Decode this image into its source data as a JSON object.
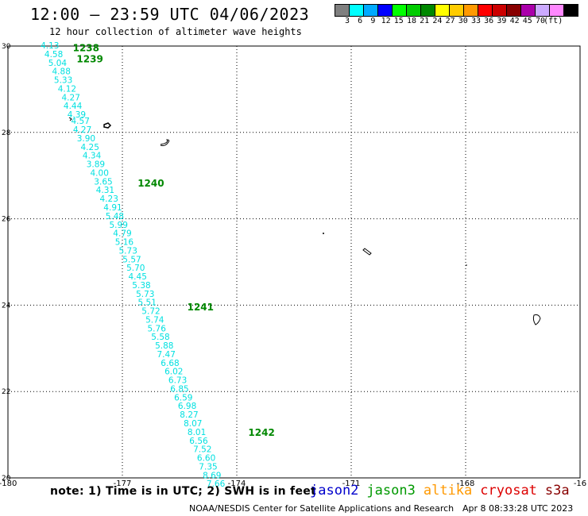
{
  "header": {
    "title": "12:00 – 23:59 UTC 04/06/2023",
    "subtitle": "12 hour collection of altimeter wave heights"
  },
  "color_scale": {
    "colors": [
      "#7f7f7f",
      "#00ffff",
      "#00aaff",
      "#0000ff",
      "#00ff00",
      "#00cc00",
      "#008800",
      "#ffff00",
      "#ffcc00",
      "#ff9900",
      "#ff0000",
      "#cc0000",
      "#880000",
      "#aa00aa",
      "#ccaaff",
      "#ff88ff",
      "#000000"
    ],
    "labels": [
      "3",
      "6",
      "9",
      "12",
      "15",
      "18",
      "21",
      "24",
      "27",
      "30",
      "33",
      "36",
      "39",
      "42",
      "45",
      "70",
      "(ft)"
    ]
  },
  "map": {
    "lon_ticks": [
      "-180",
      "-177",
      "-174",
      "-171",
      "-168",
      "-16"
    ],
    "lat_ticks": [
      "30",
      "28",
      "26",
      "24",
      "22",
      "20"
    ],
    "lon_range": [
      -180,
      -165
    ],
    "lat_range": [
      20,
      30
    ],
    "track_color": "#00e0e0",
    "label_color": "#008800",
    "measurements": [
      {
        "lat": 30.0,
        "lon": -178.9,
        "v": "4.13"
      },
      {
        "lat": 29.8,
        "lon": -178.8,
        "v": "4.58"
      },
      {
        "lat": 29.6,
        "lon": -178.7,
        "v": "5.04"
      },
      {
        "lat": 29.4,
        "lon": -178.6,
        "v": "4.88"
      },
      {
        "lat": 29.2,
        "lon": -178.55,
        "v": "5.33"
      },
      {
        "lat": 29.0,
        "lon": -178.45,
        "v": "4.12"
      },
      {
        "lat": 28.8,
        "lon": -178.35,
        "v": "4.27"
      },
      {
        "lat": 28.6,
        "lon": -178.3,
        "v": "4.44"
      },
      {
        "lat": 28.4,
        "lon": -178.2,
        "v": "4.39"
      },
      {
        "lat": 28.25,
        "lon": -178.1,
        "v": "4.57"
      },
      {
        "lat": 28.05,
        "lon": -178.05,
        "v": "4.27"
      },
      {
        "lat": 27.85,
        "lon": -177.95,
        "v": "3.90"
      },
      {
        "lat": 27.65,
        "lon": -177.85,
        "v": "4.25"
      },
      {
        "lat": 27.45,
        "lon": -177.8,
        "v": "4.34"
      },
      {
        "lat": 27.25,
        "lon": -177.7,
        "v": "3.89"
      },
      {
        "lat": 27.05,
        "lon": -177.6,
        "v": "4.00"
      },
      {
        "lat": 26.85,
        "lon": -177.5,
        "v": "3.65"
      },
      {
        "lat": 26.65,
        "lon": -177.45,
        "v": "4.31"
      },
      {
        "lat": 26.45,
        "lon": -177.35,
        "v": "4.23"
      },
      {
        "lat": 26.25,
        "lon": -177.25,
        "v": "4.91"
      },
      {
        "lat": 26.05,
        "lon": -177.2,
        "v": "5.48"
      },
      {
        "lat": 25.85,
        "lon": -177.1,
        "v": "5.99"
      },
      {
        "lat": 25.65,
        "lon": -177.0,
        "v": "4.79"
      },
      {
        "lat": 25.45,
        "lon": -176.95,
        "v": "5.16"
      },
      {
        "lat": 25.25,
        "lon": -176.85,
        "v": "5.73"
      },
      {
        "lat": 25.05,
        "lon": -176.75,
        "v": "5.57"
      },
      {
        "lat": 24.85,
        "lon": -176.65,
        "v": "5.70"
      },
      {
        "lat": 24.65,
        "lon": -176.6,
        "v": "4.45"
      },
      {
        "lat": 24.45,
        "lon": -176.5,
        "v": "5.38"
      },
      {
        "lat": 24.25,
        "lon": -176.4,
        "v": "5.73"
      },
      {
        "lat": 24.05,
        "lon": -176.35,
        "v": "5.51"
      },
      {
        "lat": 23.85,
        "lon": -176.25,
        "v": "5.72"
      },
      {
        "lat": 23.65,
        "lon": -176.15,
        "v": "5.74"
      },
      {
        "lat": 23.45,
        "lon": -176.1,
        "v": "5.76"
      },
      {
        "lat": 23.25,
        "lon": -176.0,
        "v": "5.58"
      },
      {
        "lat": 23.05,
        "lon": -175.9,
        "v": "5.88"
      },
      {
        "lat": 22.85,
        "lon": -175.85,
        "v": "7.47"
      },
      {
        "lat": 22.65,
        "lon": -175.75,
        "v": "6.68"
      },
      {
        "lat": 22.45,
        "lon": -175.65,
        "v": "6.02"
      },
      {
        "lat": 22.25,
        "lon": -175.55,
        "v": "6.73"
      },
      {
        "lat": 22.05,
        "lon": -175.5,
        "v": "6.85"
      },
      {
        "lat": 21.85,
        "lon": -175.4,
        "v": "6.59"
      },
      {
        "lat": 21.65,
        "lon": -175.3,
        "v": "6.98"
      },
      {
        "lat": 21.45,
        "lon": -175.25,
        "v": "8.27"
      },
      {
        "lat": 21.25,
        "lon": -175.15,
        "v": "8.07"
      },
      {
        "lat": 21.05,
        "lon": -175.05,
        "v": "8.01"
      },
      {
        "lat": 20.85,
        "lon": -175.0,
        "v": "6.56"
      },
      {
        "lat": 20.65,
        "lon": -174.9,
        "v": "7.52"
      },
      {
        "lat": 20.45,
        "lon": -174.8,
        "v": "6.60"
      },
      {
        "lat": 20.25,
        "lon": -174.75,
        "v": "7.35"
      },
      {
        "lat": 20.05,
        "lon": -174.65,
        "v": "8.69"
      },
      {
        "lat": 19.85,
        "lon": -174.55,
        "v": "7.66"
      }
    ],
    "pass_labels": [
      {
        "text": "1238",
        "lat": 29.95,
        "lon": -178.3
      },
      {
        "text": "1239",
        "lat": 29.7,
        "lon": -178.2
      },
      {
        "text": "1240",
        "lat": 26.82,
        "lon": -176.6
      },
      {
        "text": "1241",
        "lat": 23.95,
        "lon": -175.3
      },
      {
        "text": "1242",
        "lat": 21.05,
        "lon": -173.7
      }
    ]
  },
  "footer": {
    "note": "note:  1) Time is in UTC;  2) SWH is in feet",
    "satellites": [
      {
        "name": "jason2",
        "color": "#0000cc"
      },
      {
        "name": "jason3",
        "color": "#009900"
      },
      {
        "name": "altika",
        "color": "#ff9900"
      },
      {
        "name": "cryosat",
        "color": "#dd0000"
      },
      {
        "name": "s3a",
        "color": "#880000"
      }
    ],
    "credit": "NOAA/NESDIS Center for Satellite Applications and Research",
    "timestamp": "Apr  8 08:33:28 UTC 2023"
  }
}
